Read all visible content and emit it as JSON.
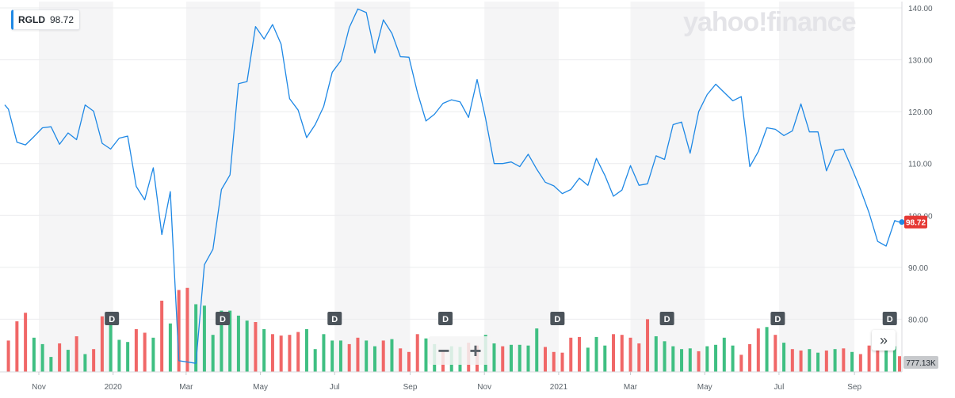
{
  "header": {
    "ticker": "RGLD",
    "price": "98.72",
    "brand": "yahoo!finance",
    "accent_color": "#1e88e5"
  },
  "controls": {
    "zoom_out": "−",
    "zoom_in": "+",
    "expand": "»",
    "expand_icon": "double-chevron-right-icon"
  },
  "chart_data": {
    "type": "line",
    "xlabel": "",
    "ylabel": "",
    "ylim": [
      70,
      142
    ],
    "yticks": [
      "140.00",
      "130.00",
      "120.00",
      "110.00",
      "100.00",
      "90.00",
      "80.00"
    ],
    "x_ticks": [
      {
        "label": "Nov",
        "date": "2019-11-01"
      },
      {
        "label": "2020",
        "date": "2020-01-01"
      },
      {
        "label": "Mar",
        "date": "2020-03-01"
      },
      {
        "label": "May",
        "date": "2020-05-01"
      },
      {
        "label": "Jul",
        "date": "2020-07-01"
      },
      {
        "label": "Sep",
        "date": "2020-09-01"
      },
      {
        "label": "Nov",
        "date": "2020-11-01"
      },
      {
        "label": "2021",
        "date": "2021-01-01"
      },
      {
        "label": "Mar",
        "date": "2021-03-01"
      },
      {
        "label": "May",
        "date": "2021-05-01"
      },
      {
        "label": "Jul",
        "date": "2021-07-01"
      },
      {
        "label": "Sep",
        "date": "2021-09-01"
      }
    ],
    "current_value_label": "98.72",
    "current_value_color": "#e53935",
    "volume_label": "777.13K",
    "grid": true,
    "line_color": "#1e88e5",
    "up_color": "#3fbf82",
    "down_color": "#f06767",
    "dividend_marker_label": "D",
    "dividend_dates": [
      "2019-12-31",
      "2020-03-31",
      "2020-07-01",
      "2020-09-30",
      "2020-12-31",
      "2021-03-31",
      "2021-06-30",
      "2021-09-30"
    ],
    "series": [
      {
        "points": [
          [
            "2019-10-04",
            121.3
          ],
          [
            "2019-10-07",
            120.5
          ],
          [
            "2019-10-14",
            114.1
          ],
          [
            "2019-10-21",
            113.6
          ],
          [
            "2019-10-28",
            115.2
          ],
          [
            "2019-11-04",
            116.9
          ],
          [
            "2019-11-11",
            117.1
          ],
          [
            "2019-11-18",
            113.7
          ],
          [
            "2019-11-25",
            115.9
          ],
          [
            "2019-12-02",
            114.6
          ],
          [
            "2019-12-09",
            121.3
          ],
          [
            "2019-12-16",
            120.1
          ],
          [
            "2019-12-23",
            113.9
          ],
          [
            "2019-12-30",
            112.8
          ],
          [
            "2020-01-06",
            114.9
          ],
          [
            "2020-01-13",
            115.3
          ],
          [
            "2020-01-20",
            105.6
          ],
          [
            "2020-01-27",
            103.0
          ],
          [
            "2020-02-03",
            109.2
          ],
          [
            "2020-02-10",
            96.3
          ],
          [
            "2020-02-17",
            104.6
          ],
          [
            "2020-02-24",
            72.0
          ],
          [
            "2020-03-09",
            71.5
          ],
          [
            "2020-03-16",
            90.5
          ],
          [
            "2020-03-23",
            93.5
          ],
          [
            "2020-03-30",
            105.0
          ],
          [
            "2020-04-06",
            107.8
          ],
          [
            "2020-04-13",
            125.4
          ],
          [
            "2020-04-20",
            125.8
          ],
          [
            "2020-04-27",
            136.4
          ],
          [
            "2020-05-04",
            134.0
          ],
          [
            "2020-05-11",
            136.8
          ],
          [
            "2020-05-18",
            133.0
          ],
          [
            "2020-05-25",
            122.5
          ],
          [
            "2020-06-01",
            120.3
          ],
          [
            "2020-06-08",
            115.0
          ],
          [
            "2020-06-15",
            117.5
          ],
          [
            "2020-06-22",
            121.0
          ],
          [
            "2020-06-29",
            127.6
          ],
          [
            "2020-07-06",
            129.8
          ],
          [
            "2020-07-13",
            136.2
          ],
          [
            "2020-07-20",
            139.8
          ],
          [
            "2020-07-27",
            139.1
          ],
          [
            "2020-08-03",
            131.3
          ],
          [
            "2020-08-10",
            137.7
          ],
          [
            "2020-08-17",
            135.1
          ],
          [
            "2020-08-24",
            130.6
          ],
          [
            "2020-08-31",
            130.5
          ],
          [
            "2020-09-07",
            123.7
          ],
          [
            "2020-09-14",
            118.2
          ],
          [
            "2020-09-21",
            119.5
          ],
          [
            "2020-09-28",
            121.6
          ],
          [
            "2020-10-05",
            122.3
          ],
          [
            "2020-10-12",
            121.9
          ],
          [
            "2020-10-19",
            118.9
          ],
          [
            "2020-10-26",
            126.2
          ],
          [
            "2020-11-02",
            118.7
          ],
          [
            "2020-11-09",
            110.0
          ],
          [
            "2020-11-16",
            110.0
          ],
          [
            "2020-11-23",
            110.3
          ],
          [
            "2020-11-30",
            109.4
          ],
          [
            "2020-12-07",
            111.8
          ],
          [
            "2020-12-14",
            108.9
          ],
          [
            "2020-12-21",
            106.4
          ],
          [
            "2020-12-28",
            105.7
          ],
          [
            "2021-01-04",
            104.2
          ],
          [
            "2021-01-11",
            105.0
          ],
          [
            "2021-01-18",
            107.2
          ],
          [
            "2021-01-25",
            105.8
          ],
          [
            "2021-02-01",
            111.0
          ],
          [
            "2021-02-08",
            107.7
          ],
          [
            "2021-02-15",
            103.7
          ],
          [
            "2021-02-22",
            104.9
          ],
          [
            "2021-03-01",
            109.6
          ],
          [
            "2021-03-08",
            105.8
          ],
          [
            "2021-03-15",
            106.1
          ],
          [
            "2021-03-22",
            111.5
          ],
          [
            "2021-03-29",
            110.8
          ],
          [
            "2021-04-05",
            117.5
          ],
          [
            "2021-04-12",
            118.0
          ],
          [
            "2021-04-19",
            112.0
          ],
          [
            "2021-04-26",
            120.0
          ],
          [
            "2021-05-03",
            123.3
          ],
          [
            "2021-05-10",
            125.3
          ],
          [
            "2021-05-17",
            123.7
          ],
          [
            "2021-05-24",
            122.1
          ],
          [
            "2021-05-31",
            122.9
          ],
          [
            "2021-06-07",
            109.4
          ],
          [
            "2021-06-14",
            112.3
          ],
          [
            "2021-06-21",
            116.9
          ],
          [
            "2021-06-28",
            116.6
          ],
          [
            "2021-07-05",
            115.4
          ],
          [
            "2021-07-12",
            116.3
          ],
          [
            "2021-07-19",
            121.5
          ],
          [
            "2021-07-26",
            116.1
          ],
          [
            "2021-08-02",
            116.1
          ],
          [
            "2021-08-09",
            108.6
          ],
          [
            "2021-08-16",
            112.5
          ],
          [
            "2021-08-23",
            112.8
          ],
          [
            "2021-08-30",
            109.0
          ],
          [
            "2021-09-06",
            105.0
          ],
          [
            "2021-09-13",
            100.5
          ],
          [
            "2021-09-20",
            95.0
          ],
          [
            "2021-09-27",
            94.1
          ],
          [
            "2021-10-04",
            99.0
          ],
          [
            "2021-10-08",
            98.72
          ]
        ]
      }
    ],
    "volume": [
      {
        "date": "2019-10-07",
        "v": 0.44,
        "dir": "down"
      },
      {
        "date": "2019-10-14",
        "v": 0.71,
        "dir": "down"
      },
      {
        "date": "2019-10-21",
        "v": 0.83,
        "dir": "down"
      },
      {
        "date": "2019-10-28",
        "v": 0.48,
        "dir": "up"
      },
      {
        "date": "2019-11-04",
        "v": 0.39,
        "dir": "up"
      },
      {
        "date": "2019-11-11",
        "v": 0.21,
        "dir": "up"
      },
      {
        "date": "2019-11-18",
        "v": 0.4,
        "dir": "down"
      },
      {
        "date": "2019-11-25",
        "v": 0.31,
        "dir": "up"
      },
      {
        "date": "2019-12-02",
        "v": 0.5,
        "dir": "down"
      },
      {
        "date": "2019-12-09",
        "v": 0.25,
        "dir": "up"
      },
      {
        "date": "2019-12-16",
        "v": 0.32,
        "dir": "down"
      },
      {
        "date": "2019-12-23",
        "v": 0.78,
        "dir": "down"
      },
      {
        "date": "2019-12-30",
        "v": 0.66,
        "dir": "up"
      },
      {
        "date": "2020-01-06",
        "v": 0.45,
        "dir": "up"
      },
      {
        "date": "2020-01-13",
        "v": 0.42,
        "dir": "up"
      },
      {
        "date": "2020-01-20",
        "v": 0.6,
        "dir": "down"
      },
      {
        "date": "2020-01-27",
        "v": 0.55,
        "dir": "down"
      },
      {
        "date": "2020-02-03",
        "v": 0.48,
        "dir": "up"
      },
      {
        "date": "2020-02-10",
        "v": 1.0,
        "dir": "down"
      },
      {
        "date": "2020-02-17",
        "v": 0.68,
        "dir": "up"
      },
      {
        "date": "2020-02-24",
        "v": 1.15,
        "dir": "down"
      },
      {
        "date": "2020-03-02",
        "v": 1.18,
        "dir": "down"
      },
      {
        "date": "2020-03-09",
        "v": 0.95,
        "dir": "up"
      },
      {
        "date": "2020-03-16",
        "v": 0.93,
        "dir": "up"
      },
      {
        "date": "2020-03-23",
        "v": 0.52,
        "dir": "up"
      },
      {
        "date": "2020-03-30",
        "v": 0.86,
        "dir": "up"
      },
      {
        "date": "2020-04-06",
        "v": 0.86,
        "dir": "up"
      },
      {
        "date": "2020-04-13",
        "v": 0.79,
        "dir": "up"
      },
      {
        "date": "2020-04-20",
        "v": 0.72,
        "dir": "up"
      },
      {
        "date": "2020-04-27",
        "v": 0.7,
        "dir": "down"
      },
      {
        "date": "2020-05-04",
        "v": 0.6,
        "dir": "up"
      },
      {
        "date": "2020-05-11",
        "v": 0.53,
        "dir": "down"
      },
      {
        "date": "2020-05-18",
        "v": 0.51,
        "dir": "down"
      },
      {
        "date": "2020-05-25",
        "v": 0.52,
        "dir": "down"
      },
      {
        "date": "2020-06-01",
        "v": 0.56,
        "dir": "down"
      },
      {
        "date": "2020-06-08",
        "v": 0.6,
        "dir": "up"
      },
      {
        "date": "2020-06-15",
        "v": 0.32,
        "dir": "up"
      },
      {
        "date": "2020-06-22",
        "v": 0.53,
        "dir": "up"
      },
      {
        "date": "2020-06-29",
        "v": 0.44,
        "dir": "up"
      },
      {
        "date": "2020-07-06",
        "v": 0.44,
        "dir": "up"
      },
      {
        "date": "2020-07-13",
        "v": 0.39,
        "dir": "down"
      },
      {
        "date": "2020-07-20",
        "v": 0.48,
        "dir": "down"
      },
      {
        "date": "2020-07-27",
        "v": 0.44,
        "dir": "up"
      },
      {
        "date": "2020-08-03",
        "v": 0.36,
        "dir": "up"
      },
      {
        "date": "2020-08-10",
        "v": 0.44,
        "dir": "down"
      },
      {
        "date": "2020-08-17",
        "v": 0.46,
        "dir": "up"
      },
      {
        "date": "2020-08-24",
        "v": 0.33,
        "dir": "down"
      },
      {
        "date": "2020-08-31",
        "v": 0.28,
        "dir": "down"
      },
      {
        "date": "2020-09-07",
        "v": 0.53,
        "dir": "down"
      },
      {
        "date": "2020-09-14",
        "v": 0.47,
        "dir": "up"
      },
      {
        "date": "2020-09-21",
        "v": 0.39,
        "dir": "up"
      },
      {
        "date": "2020-09-28",
        "v": 0.3,
        "dir": "down"
      },
      {
        "date": "2020-10-05",
        "v": 0.36,
        "dir": "up"
      },
      {
        "date": "2020-10-12",
        "v": 0.35,
        "dir": "up"
      },
      {
        "date": "2020-10-19",
        "v": 0.41,
        "dir": "down"
      },
      {
        "date": "2020-10-26",
        "v": 0.37,
        "dir": "down"
      },
      {
        "date": "2020-11-02",
        "v": 0.52,
        "dir": "up"
      },
      {
        "date": "2020-11-09",
        "v": 0.4,
        "dir": "up"
      },
      {
        "date": "2020-11-16",
        "v": 0.36,
        "dir": "down"
      },
      {
        "date": "2020-11-23",
        "v": 0.38,
        "dir": "up"
      },
      {
        "date": "2020-11-30",
        "v": 0.38,
        "dir": "up"
      },
      {
        "date": "2020-12-07",
        "v": 0.37,
        "dir": "up"
      },
      {
        "date": "2020-12-14",
        "v": 0.61,
        "dir": "up"
      },
      {
        "date": "2020-12-21",
        "v": 0.35,
        "dir": "down"
      },
      {
        "date": "2020-12-28",
        "v": 0.28,
        "dir": "down"
      },
      {
        "date": "2021-01-04",
        "v": 0.27,
        "dir": "down"
      },
      {
        "date": "2021-01-11",
        "v": 0.48,
        "dir": "down"
      },
      {
        "date": "2021-01-18",
        "v": 0.49,
        "dir": "down"
      },
      {
        "date": "2021-01-25",
        "v": 0.34,
        "dir": "up"
      },
      {
        "date": "2021-02-01",
        "v": 0.49,
        "dir": "up"
      },
      {
        "date": "2021-02-08",
        "v": 0.37,
        "dir": "up"
      },
      {
        "date": "2021-02-15",
        "v": 0.53,
        "dir": "down"
      },
      {
        "date": "2021-02-22",
        "v": 0.52,
        "dir": "down"
      },
      {
        "date": "2021-03-01",
        "v": 0.48,
        "dir": "down"
      },
      {
        "date": "2021-03-08",
        "v": 0.4,
        "dir": "down"
      },
      {
        "date": "2021-03-15",
        "v": 0.74,
        "dir": "down"
      },
      {
        "date": "2021-03-22",
        "v": 0.5,
        "dir": "up"
      },
      {
        "date": "2021-03-29",
        "v": 0.43,
        "dir": "up"
      },
      {
        "date": "2021-04-05",
        "v": 0.36,
        "dir": "up"
      },
      {
        "date": "2021-04-12",
        "v": 0.32,
        "dir": "up"
      },
      {
        "date": "2021-04-19",
        "v": 0.33,
        "dir": "up"
      },
      {
        "date": "2021-04-26",
        "v": 0.29,
        "dir": "down"
      },
      {
        "date": "2021-05-03",
        "v": 0.36,
        "dir": "up"
      },
      {
        "date": "2021-05-10",
        "v": 0.38,
        "dir": "up"
      },
      {
        "date": "2021-05-17",
        "v": 0.48,
        "dir": "up"
      },
      {
        "date": "2021-05-24",
        "v": 0.37,
        "dir": "up"
      },
      {
        "date": "2021-05-31",
        "v": 0.24,
        "dir": "down"
      },
      {
        "date": "2021-06-07",
        "v": 0.39,
        "dir": "down"
      },
      {
        "date": "2021-06-14",
        "v": 0.61,
        "dir": "down"
      },
      {
        "date": "2021-06-21",
        "v": 0.63,
        "dir": "up"
      },
      {
        "date": "2021-06-28",
        "v": 0.52,
        "dir": "down"
      },
      {
        "date": "2021-07-05",
        "v": 0.41,
        "dir": "up"
      },
      {
        "date": "2021-07-12",
        "v": 0.32,
        "dir": "down"
      },
      {
        "date": "2021-07-19",
        "v": 0.3,
        "dir": "down"
      },
      {
        "date": "2021-07-26",
        "v": 0.32,
        "dir": "up"
      },
      {
        "date": "2021-08-02",
        "v": 0.27,
        "dir": "up"
      },
      {
        "date": "2021-08-09",
        "v": 0.3,
        "dir": "down"
      },
      {
        "date": "2021-08-16",
        "v": 0.32,
        "dir": "up"
      },
      {
        "date": "2021-08-23",
        "v": 0.33,
        "dir": "down"
      },
      {
        "date": "2021-08-30",
        "v": 0.28,
        "dir": "up"
      },
      {
        "date": "2021-09-06",
        "v": 0.25,
        "dir": "down"
      },
      {
        "date": "2021-09-13",
        "v": 0.37,
        "dir": "down"
      },
      {
        "date": "2021-09-20",
        "v": 0.34,
        "dir": "down"
      },
      {
        "date": "2021-09-27",
        "v": 0.4,
        "dir": "up"
      },
      {
        "date": "2021-10-04",
        "v": 0.36,
        "dir": "up"
      },
      {
        "date": "2021-10-08",
        "v": 0.22,
        "dir": "down"
      }
    ]
  }
}
